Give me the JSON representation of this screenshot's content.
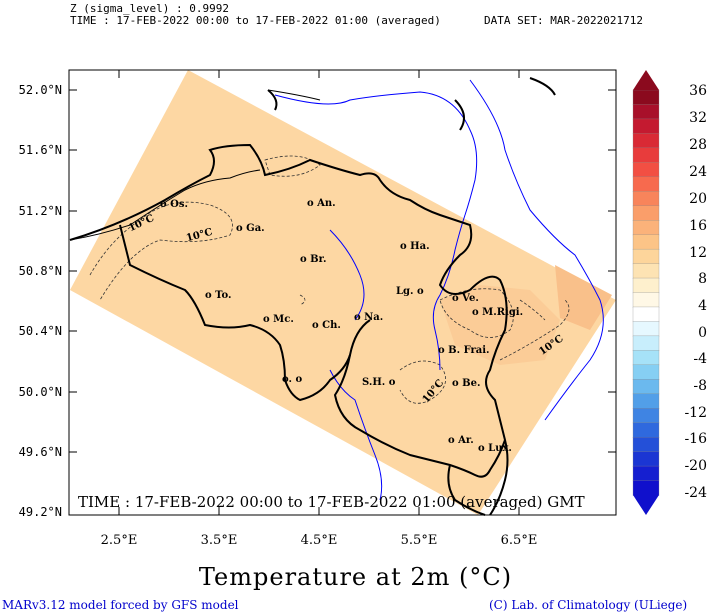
{
  "header": {
    "line1": "Z (sigma_level) : 0.9992",
    "line2": "TIME : 17-FEB-2022 00:00 to 17-FEB-2022 01:00 (averaged)",
    "dataset": "DATA SET: MAR-2022021712"
  },
  "map": {
    "lat_labels": [
      "52.0°N",
      "51.6°N",
      "51.2°N",
      "50.8°N",
      "50.4°N",
      "50.0°N",
      "49.6°N",
      "49.2°N"
    ],
    "lon_labels": [
      "2.5°E",
      "3.5°E",
      "4.5°E",
      "5.5°E",
      "6.5°E"
    ],
    "cities": [
      "Os.",
      "An.",
      "Ga.",
      "Ha.",
      "Br.",
      "To.",
      "Lg.",
      "Ve.",
      "M.Rigi.",
      "Mc.",
      "Ch.",
      "Na.",
      "B. Frai.",
      "o.",
      "S.H.",
      "Be.",
      "Ar.",
      "Lux."
    ],
    "contour_labels": [
      "10°C",
      "10°C",
      "10°C",
      "10°C"
    ],
    "overlay_text": "TIME : 17-FEB-2022 00:00 to 17-FEB-2022 01:00 (averaged) GMT",
    "colors": {
      "field": "#fdd7a3",
      "field_dark": "#f9c38d",
      "river": "#0000ff",
      "border": "#000000"
    }
  },
  "colorbar": {
    "labels": [
      "36",
      "32",
      "28",
      "24",
      "20",
      "16",
      "12",
      "8",
      "4",
      "0",
      "-4",
      "-8",
      "-12",
      "-16",
      "-20",
      "-24"
    ],
    "colors": [
      "#8b0a1e",
      "#a8102a",
      "#c41a30",
      "#d92a35",
      "#e83c3c",
      "#f24f43",
      "#f76a4e",
      "#f8845b",
      "#fa9e6a",
      "#fbb27a",
      "#fcc487",
      "#fdd59b",
      "#fde3b3",
      "#fef0cd",
      "#fff8e6",
      "#ffffff",
      "#e6f8ff",
      "#c8eefc",
      "#a6e2f8",
      "#86cff3",
      "#6bb9ee",
      "#529fe8",
      "#3f84e3",
      "#2f69de",
      "#2450d8",
      "#1b36d3",
      "#151fd0",
      "#1010cc"
    ]
  },
  "title": "Temperature at 2m (°C)",
  "footer": {
    "left": "MARv3.12 model forced by GFS model",
    "right": "(C) Lab. of Climatology (ULiege)"
  }
}
